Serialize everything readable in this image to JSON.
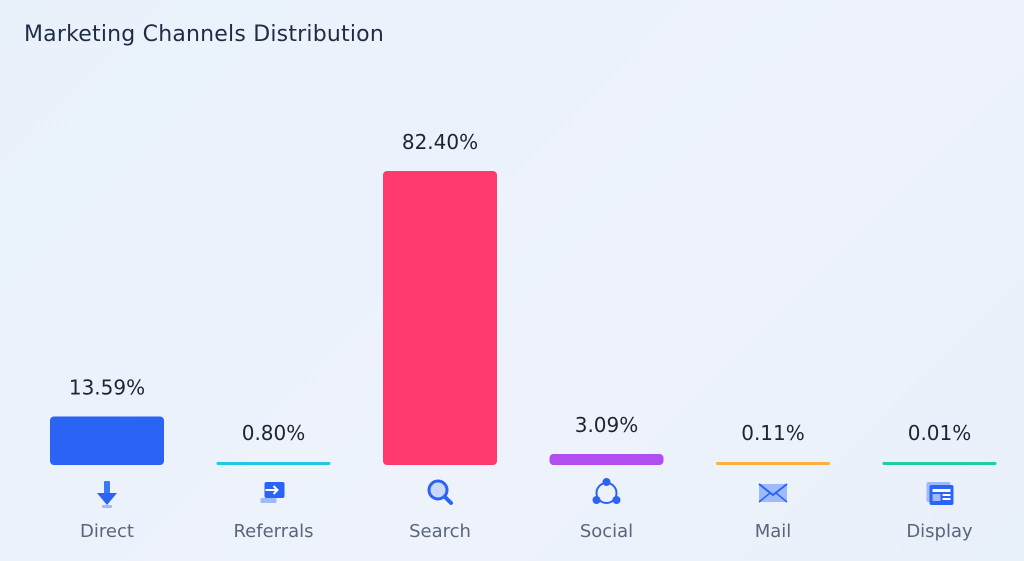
{
  "chart_data": {
    "type": "bar",
    "title": "Marketing Channels Distribution",
    "categories": [
      "Direct",
      "Referrals",
      "Search",
      "Social",
      "Mail",
      "Display"
    ],
    "values": [
      13.59,
      0.8,
      82.4,
      3.09,
      0.11,
      0.01
    ],
    "value_labels": [
      "13.59%",
      "0.80%",
      "82.40%",
      "3.09%",
      "0.11%",
      "0.01%"
    ],
    "colors": [
      "#2b63f5",
      "#22c7e8",
      "#ff386d",
      "#b04ef0",
      "#f9b23e",
      "#1fcf97"
    ],
    "icons": [
      "direct-icon",
      "referrals-icon",
      "search-icon",
      "social-icon",
      "mail-icon",
      "display-icon"
    ],
    "ylim": [
      0,
      82.4
    ],
    "grid": false,
    "legend": "none"
  }
}
